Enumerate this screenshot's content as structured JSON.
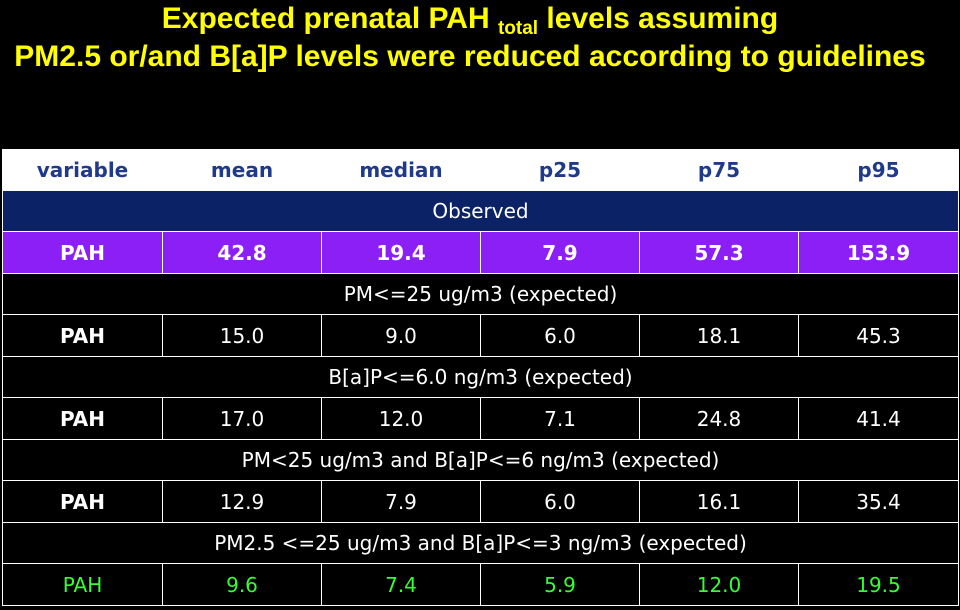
{
  "title": {
    "line1_before": "Expected prenatal PAH ",
    "line1_sub": "total",
    "line1_after": " levels assuming",
    "line2": "PM2.5 or/and B[a]P levels were reduced according to guidelines"
  },
  "colors": {
    "title": "#ffff00",
    "background": "#000000",
    "header_text": "#1f3a8a",
    "observed_band": "#0b2366",
    "observed_row": "#8b1ff5",
    "last_row_text": "#33ff33"
  },
  "table": {
    "headers": [
      "variable",
      "mean",
      "median",
      "p25",
      "p75",
      "p95"
    ],
    "observed_label": "Observed",
    "observed_row": [
      "PAH",
      "42.8",
      "19.4",
      "7.9",
      "57.3",
      "153.9"
    ],
    "sections": [
      {
        "label": "PM<=25 ug/m3   (expected)",
        "row": [
          "PAH",
          "15.0",
          "9.0",
          "6.0",
          "18.1",
          "45.3"
        ]
      },
      {
        "label": "B[a]P<=6.0 ng/m3   (expected)",
        "row": [
          "PAH",
          "17.0",
          "12.0",
          "7.1",
          "24.8",
          "41.4"
        ]
      },
      {
        "label": "PM<25  ug/m3 and B[a]P<=6 ng/m3  (expected)",
        "row": [
          "PAH",
          "12.9",
          "7.9",
          "6.0",
          "16.1",
          "35.4"
        ]
      },
      {
        "label": "PM2.5 <=25 ug/m3 and  B[a]P<=3 ng/m3  (expected)",
        "row": [
          "PAH",
          "9.6",
          "7.4",
          "5.9",
          "12.0",
          "19.5"
        ]
      }
    ]
  }
}
